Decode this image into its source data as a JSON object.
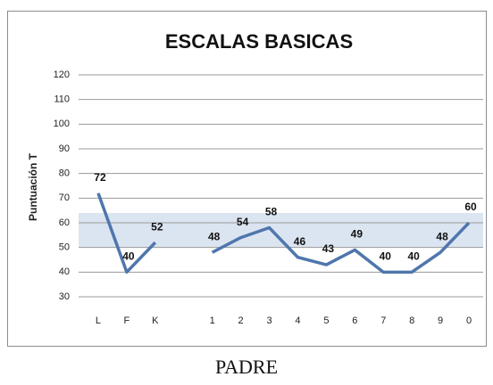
{
  "chart_data": {
    "type": "line",
    "title": "ESCALAS BASICAS",
    "y_label": "Puntuación T",
    "categories": [
      "L",
      "F",
      "K",
      null,
      "1",
      "2",
      "3",
      "4",
      "5",
      "6",
      "7",
      "8",
      "9",
      "0"
    ],
    "values": [
      72,
      40,
      52,
      null,
      48,
      54,
      58,
      46,
      43,
      49,
      40,
      40,
      48,
      60
    ],
    "color": "#4f76ad",
    "band": [
      50,
      64
    ],
    "band_color": "#dbe5f1",
    "ylim": [
      30,
      120
    ],
    "yticks": [
      30,
      40,
      50,
      60,
      70,
      80,
      90,
      100,
      110,
      120
    ],
    "grid": true
  },
  "caption": "PADRE"
}
